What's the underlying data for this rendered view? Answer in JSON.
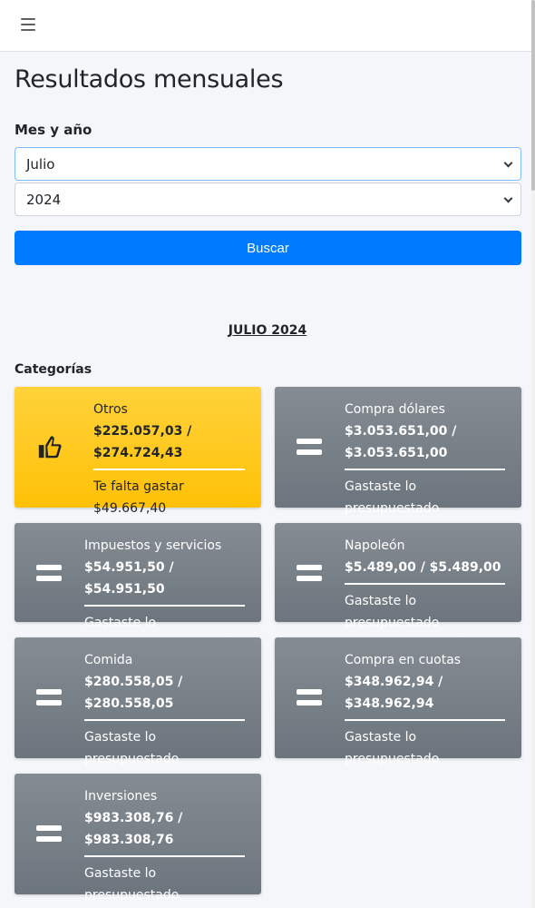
{
  "page": {
    "title": "Resultados mensuales",
    "filter_label": "Mes y año",
    "month_value": "Julio",
    "year_value": "2024",
    "search_label": "Buscar",
    "period_heading": "JULIO 2024",
    "categories_heading": "Categorías"
  },
  "categories": [
    {
      "name": "Otros",
      "amount_line1": "$225.057,03 /",
      "amount_line2": "$274.724,43",
      "status": "Te falta gastar $49.667,40",
      "icon": "thumbs-up-icon"
    },
    {
      "name": "Compra dólares",
      "amount_line1": "$3.053.651,00 /",
      "amount_line2": "$3.053.651,00",
      "status": "Gastaste lo presupuestado",
      "icon": "equals-icon"
    },
    {
      "name": "Impuestos y servicios",
      "amount_line1": "$54.951,50 / $54.951,50",
      "status": "Gastaste lo presupuestado",
      "icon": "equals-icon"
    },
    {
      "name": "Napoleón",
      "amount_line1": "$5.489,00 / $5.489,00",
      "status": "Gastaste lo presupuestado",
      "icon": "equals-icon"
    },
    {
      "name": "Comida",
      "amount_line1": "$280.558,05 /",
      "amount_line2": "$280.558,05",
      "status": "Gastaste lo presupuestado",
      "icon": "equals-icon"
    },
    {
      "name": "Compra en cuotas",
      "amount_line1": "$348.962,94 /",
      "amount_line2": "$348.962,94",
      "status": "Gastaste lo presupuestado",
      "icon": "equals-icon"
    },
    {
      "name": "Inversiones",
      "amount_line1": "$983.308,76 /",
      "amount_line2": "$983.308,76",
      "status": "Gastaste lo presupuestado",
      "icon": "equals-icon"
    }
  ],
  "colors": {
    "primary": "#007bff",
    "warning": "#ffc107",
    "secondary": "#6c757d"
  }
}
